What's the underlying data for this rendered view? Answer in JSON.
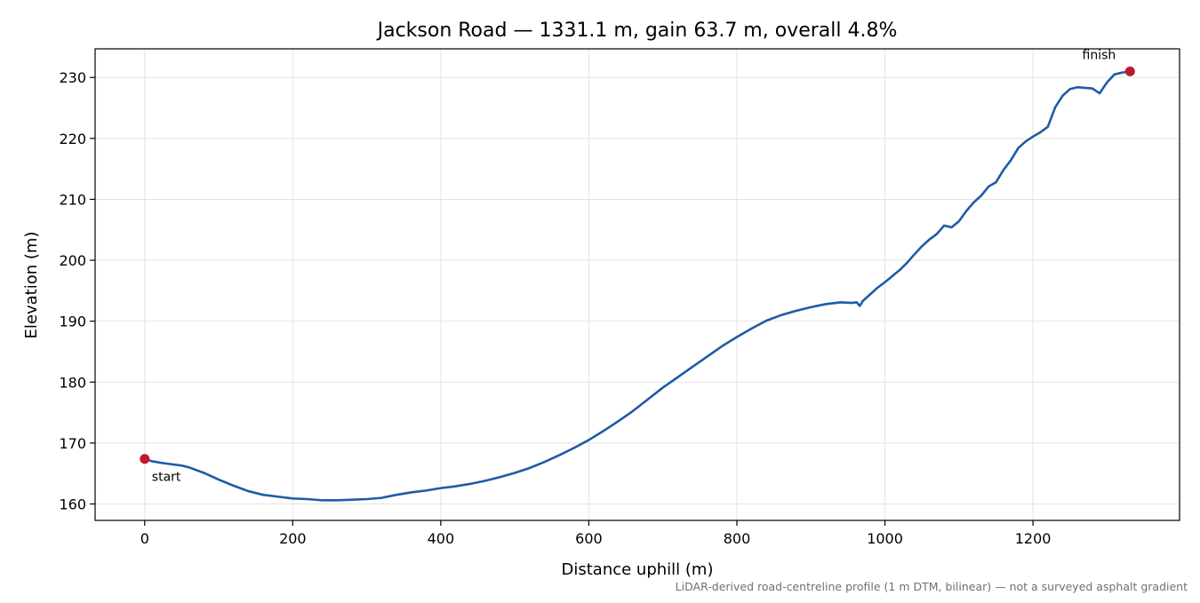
{
  "chart_data": {
    "type": "line",
    "title": "Jackson Road — 1331.1 m, gain 63.7 m, overall 4.8%",
    "xlabel": "Distance uphill (m)",
    "ylabel": "Elevation (m)",
    "footnote": "LiDAR-derived road-centreline profile (1 m DTM, bilinear) — not a surveyed asphalt gradient",
    "xlim": [
      -67,
      1398
    ],
    "ylim": [
      157.3,
      234.7
    ],
    "x_ticks": [
      0,
      200,
      400,
      600,
      800,
      1000,
      1200
    ],
    "x_tick_labels": [
      "0",
      "200",
      "400",
      "600",
      "800",
      "1000",
      "1200"
    ],
    "y_ticks": [
      160,
      170,
      180,
      190,
      200,
      210,
      220,
      230
    ],
    "y_tick_labels": [
      "160",
      "170",
      "180",
      "190",
      "200",
      "210",
      "220",
      "230"
    ],
    "grid": true,
    "line_color": "#1f5ba6",
    "marker_color": "#c0192c",
    "series": [
      {
        "x": [
          0,
          10,
          25,
          50,
          60,
          80,
          100,
          120,
          140,
          160,
          180,
          200,
          220,
          240,
          260,
          280,
          300,
          320,
          340,
          360,
          380,
          400,
          420,
          440,
          460,
          480,
          500,
          520,
          540,
          560,
          580,
          600,
          620,
          640,
          660,
          680,
          700,
          720,
          740,
          760,
          780,
          800,
          820,
          840,
          860,
          880,
          900,
          920,
          940,
          955,
          962,
          966,
          970,
          980,
          990,
          1000,
          1010,
          1020,
          1030,
          1040,
          1050,
          1060,
          1070,
          1080,
          1090,
          1100,
          1110,
          1120,
          1130,
          1140,
          1150,
          1160,
          1170,
          1180,
          1190,
          1200,
          1210,
          1220,
          1230,
          1240,
          1250,
          1260,
          1270,
          1280,
          1290,
          1300,
          1310,
          1320,
          1331.1
        ],
        "y": [
          167.4,
          167.0,
          166.7,
          166.3,
          166.0,
          165.1,
          164.0,
          163.0,
          162.1,
          161.5,
          161.2,
          160.9,
          160.8,
          160.6,
          160.6,
          160.7,
          160.8,
          161.0,
          161.5,
          161.9,
          162.2,
          162.6,
          162.9,
          163.3,
          163.8,
          164.4,
          165.1,
          165.9,
          166.9,
          168.0,
          169.2,
          170.5,
          172.0,
          173.6,
          175.3,
          177.2,
          179.1,
          180.8,
          182.5,
          184.2,
          185.9,
          187.4,
          188.8,
          190.1,
          191.0,
          191.7,
          192.3,
          192.8,
          193.1,
          193.0,
          193.1,
          192.5,
          193.3,
          194.4,
          195.5,
          196.4,
          197.4,
          198.4,
          199.6,
          201.0,
          202.3,
          203.4,
          204.3,
          205.7,
          205.4,
          206.4,
          208.1,
          209.5,
          210.6,
          212.1,
          212.8,
          214.8,
          216.4,
          218.4,
          219.5,
          220.3,
          221.0,
          221.9,
          225.1,
          227.0,
          228.1,
          228.4,
          228.3,
          228.2,
          227.4,
          229.2,
          230.5,
          230.8,
          231.0
        ]
      }
    ],
    "annotations": [
      {
        "text": "start",
        "x": 0,
        "y": 167.4
      },
      {
        "text": "finish",
        "x": 1331.1,
        "y": 231.0
      }
    ]
  }
}
